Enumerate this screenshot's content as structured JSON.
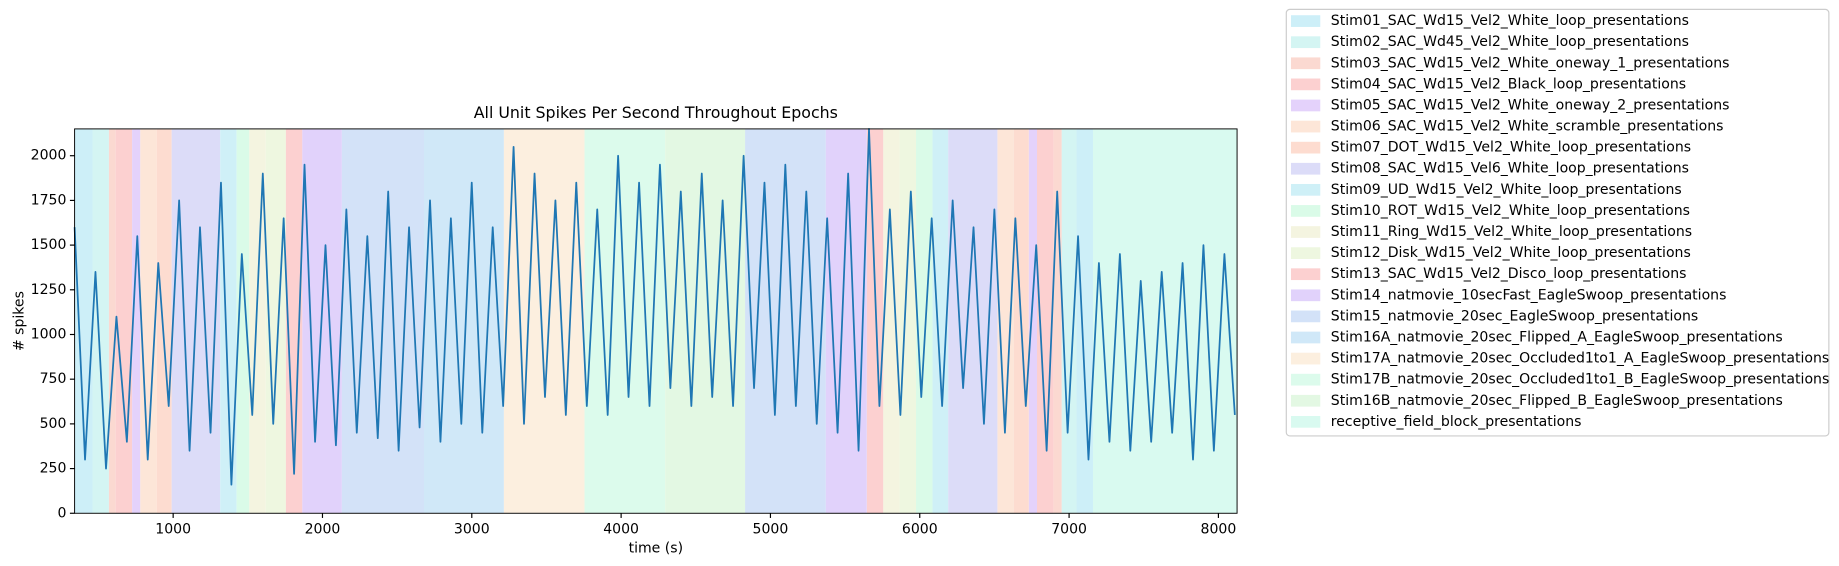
{
  "chart_data": {
    "type": "line",
    "title": "All Unit Spikes Per Second Throughout Epochs",
    "xlabel": "time (s)",
    "ylabel": "# spikes",
    "xlim": [
      340,
      8125
    ],
    "ylim": [
      0,
      2150
    ],
    "xticks": [
      1000,
      2000,
      3000,
      4000,
      5000,
      6000,
      7000,
      8000
    ],
    "yticks": [
      0,
      250,
      500,
      750,
      1000,
      1250,
      1500,
      1750,
      2000
    ],
    "x": [
      340,
      410,
      480,
      550,
      620,
      690,
      760,
      830,
      900,
      970,
      1040,
      1110,
      1180,
      1250,
      1320,
      1390,
      1460,
      1530,
      1600,
      1670,
      1740,
      1810,
      1880,
      1950,
      2020,
      2090,
      2160,
      2230,
      2300,
      2370,
      2440,
      2510,
      2580,
      2650,
      2720,
      2790,
      2860,
      2930,
      3000,
      3070,
      3140,
      3210,
      3280,
      3350,
      3420,
      3490,
      3560,
      3630,
      3700,
      3770,
      3840,
      3910,
      3980,
      4050,
      4120,
      4190,
      4260,
      4330,
      4400,
      4470,
      4540,
      4610,
      4680,
      4750,
      4820,
      4890,
      4960,
      5030,
      5100,
      5170,
      5240,
      5310,
      5380,
      5450,
      5520,
      5590,
      5660,
      5730,
      5800,
      5870,
      5940,
      6010,
      6080,
      6150,
      6220,
      6290,
      6360,
      6430,
      6500,
      6570,
      6640,
      6710,
      6780,
      6850,
      6920,
      6990,
      7060,
      7130,
      7200,
      7270,
      7340,
      7410,
      7480,
      7550,
      7620,
      7690,
      7760,
      7830,
      7900,
      7970,
      8040,
      8110
    ],
    "series": [
      {
        "color": "#1f77b4",
        "values": [
          1600,
          300,
          1350,
          250,
          1100,
          400,
          1550,
          300,
          1400,
          600,
          1750,
          350,
          1600,
          450,
          1850,
          160,
          1450,
          550,
          1900,
          500,
          1650,
          220,
          1950,
          400,
          1500,
          380,
          1700,
          450,
          1550,
          420,
          1800,
          350,
          1600,
          480,
          1750,
          400,
          1650,
          500,
          1850,
          450,
          1600,
          600,
          2050,
          500,
          1900,
          650,
          1750,
          550,
          1850,
          600,
          1700,
          550,
          2000,
          650,
          1850,
          600,
          1950,
          700,
          1800,
          600,
          1900,
          650,
          1750,
          600,
          2000,
          700,
          1850,
          550,
          1950,
          600,
          1800,
          500,
          1650,
          450,
          1900,
          350,
          2150,
          600,
          1700,
          550,
          1800,
          650,
          1650,
          600,
          1750,
          700,
          1600,
          500,
          1700,
          450,
          1650,
          600,
          1500,
          350,
          1800,
          450,
          1550,
          300,
          1400,
          400,
          1450,
          350,
          1300,
          400,
          1350,
          450,
          1400,
          300,
          1500,
          350,
          1450,
          550
        ]
      }
    ],
    "epochs": [
      {
        "name": "Stim01_SAC_Wd15_Vel2_White_loop_presentations",
        "color": "#cdeff8",
        "spans": [
          [
            340,
            460
          ],
          [
            7050,
            7160
          ]
        ]
      },
      {
        "name": "Stim02_SAC_Wd45_Vel2_White_loop_presentations",
        "color": "#d4f5f3",
        "spans": [
          [
            460,
            570
          ],
          [
            6950,
            7050
          ]
        ]
      },
      {
        "name": "Stim03_SAC_Wd15_Vel2_White_oneway_1_presentations",
        "color": "#fbd9d1",
        "spans": [
          [
            570,
            615
          ],
          [
            6895,
            6950
          ]
        ]
      },
      {
        "name": "Stim04_SAC_Wd15_Vel2_Black_loop_presentations",
        "color": "#fcd0d0",
        "spans": [
          [
            615,
            725
          ],
          [
            6785,
            6895
          ]
        ]
      },
      {
        "name": "Stim05_SAC_Wd15_Vel2_White_oneway_2_presentations",
        "color": "#e4d2fb",
        "spans": [
          [
            725,
            780
          ],
          [
            6730,
            6785
          ]
        ]
      },
      {
        "name": "Stim06_SAC_Wd15_Vel2_White_scramble_presentations",
        "color": "#fde6d8",
        "spans": [
          [
            780,
            890
          ],
          [
            6520,
            6630
          ]
        ]
      },
      {
        "name": "Stim07_DOT_Wd15_Vel2_White_loop_presentations",
        "color": "#fddcd0",
        "spans": [
          [
            890,
            990
          ],
          [
            6630,
            6730
          ]
        ]
      },
      {
        "name": "Stim08_SAC_Wd15_Vel6_White_loop_presentations",
        "color": "#dcdcf8",
        "spans": [
          [
            990,
            1315
          ],
          [
            6190,
            6520
          ]
        ]
      },
      {
        "name": "Stim09_UD_Wd15_Vel2_White_loop_presentations",
        "color": "#cff0f7",
        "spans": [
          [
            1315,
            1425
          ],
          [
            6085,
            6190
          ]
        ]
      },
      {
        "name": "Stim10_ROT_Wd15_Vel2_White_loop_presentations",
        "color": "#dafbe8",
        "spans": [
          [
            1425,
            1510
          ],
          [
            5975,
            6085
          ]
        ]
      },
      {
        "name": "Stim11_Ring_Wd15_Vel2_White_loop_presentations",
        "color": "#f4f4e0",
        "spans": [
          [
            1510,
            1620
          ],
          [
            5755,
            5865
          ]
        ]
      },
      {
        "name": "Stim12_Disk_Wd15_Vel2_White_loop_presentations",
        "color": "#eef7e0",
        "spans": [
          [
            1620,
            1755
          ],
          [
            5865,
            5975
          ]
        ]
      },
      {
        "name": "Stim13_SAC_Wd15_Vel2_Disco_loop_presentations",
        "color": "#fcd0d0",
        "spans": [
          [
            1755,
            1865
          ],
          [
            5645,
            5755
          ]
        ]
      },
      {
        "name": "Stim14_natmovie_10secFast_EagleSwoop_presentations",
        "color": "#e1d2fb",
        "spans": [
          [
            1865,
            2130
          ],
          [
            5370,
            5645
          ]
        ]
      },
      {
        "name": "Stim15_natmovie_20sec_EagleSwoop_presentations",
        "color": "#d3e2f8",
        "spans": [
          [
            2130,
            2680
          ],
          [
            4830,
            5370
          ]
        ]
      },
      {
        "name": "Stim16A_natmovie_20sec_Flipped_A_EagleSwoop_presentations",
        "color": "#d0e8f8",
        "spans": [
          [
            2680,
            3215
          ]
        ]
      },
      {
        "name": "Stim17A_natmovie_20sec_Occluded1to1_A_EagleSwoop_presentations",
        "color": "#fcefdf",
        "spans": [
          [
            3215,
            3755
          ]
        ]
      },
      {
        "name": "Stim17B_natmovie_20sec_Occluded1to1_B_EagleSwoop_presentations",
        "color": "#dcfbec",
        "spans": [
          [
            3755,
            4295
          ]
        ]
      },
      {
        "name": "Stim16B_natmovie_20sec_Flipped_B_EagleSwoop_presentations",
        "color": "#e3f8e3",
        "spans": [
          [
            4295,
            4830
          ]
        ]
      },
      {
        "name": "receptive_field_block_presentations",
        "color": "#d9faf0",
        "spans": [
          [
            7160,
            8125
          ]
        ]
      }
    ]
  }
}
